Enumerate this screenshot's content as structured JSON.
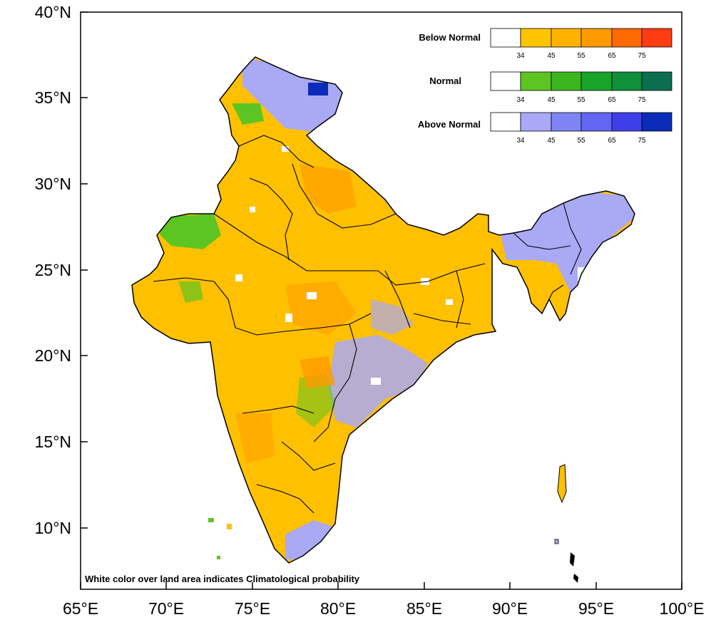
{
  "map": {
    "note": "White color over land area indicates Climatological probability",
    "x_ticks": [
      "65°E",
      "70°E",
      "75°E",
      "80°E",
      "85°E",
      "90°E",
      "95°E",
      "100°E"
    ],
    "y_ticks": [
      "40°N",
      "35°N",
      "30°N",
      "25°N",
      "20°N",
      "15°N",
      "10°N"
    ],
    "lon_range": [
      65,
      100
    ],
    "lat_range": [
      6.5,
      40
    ],
    "colors": {
      "land_default": "#FFC000",
      "boundary": "#000000",
      "below_normal": "#FFA500",
      "normal": "#5DC522",
      "above_normal": "#A9A9F5",
      "deep_above": "#0A2CB8"
    }
  },
  "legend": {
    "tick_labels": [
      "34",
      "45",
      "55",
      "65",
      "75"
    ],
    "categories": [
      {
        "name": "Below Normal",
        "colors": [
          "#ffffff",
          "#FFC400",
          "#FFB300",
          "#FF9A00",
          "#FF6A00",
          "#FF3C14"
        ]
      },
      {
        "name": "Normal",
        "colors": [
          "#ffffff",
          "#5DC522",
          "#3CB61F",
          "#18A32A",
          "#10903B",
          "#0B6E4F"
        ]
      },
      {
        "name": "Above Normal",
        "colors": [
          "#ffffff",
          "#A9A9F8",
          "#7F84F5",
          "#6366F2",
          "#3F3FEA",
          "#0A2CB8"
        ]
      }
    ]
  }
}
